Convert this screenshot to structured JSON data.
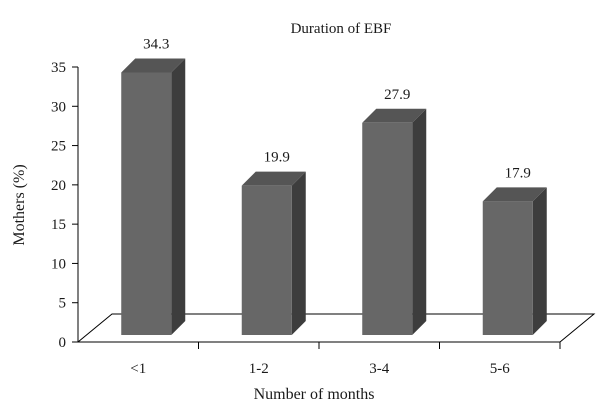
{
  "chart_data": {
    "type": "bar",
    "title": "Duration of EBF",
    "xlabel": "Number of months",
    "ylabel": "Mothers (%)",
    "categories": [
      "<1",
      "1-2",
      "3-4",
      "5-6"
    ],
    "values": [
      34.3,
      19.9,
      27.9,
      17.9
    ],
    "data_labels": [
      "34.3",
      "19.9",
      "27.9",
      "17.9"
    ],
    "ylim": [
      0,
      35
    ],
    "yticks": [
      0,
      5,
      10,
      15,
      20,
      25,
      30,
      35
    ],
    "ytick_labels": [
      "0",
      "5",
      "10",
      "15",
      "20",
      "25",
      "30",
      "35"
    ],
    "grid": false,
    "legend": "none",
    "style": "3d-bar",
    "colors": {
      "bar_front": "#676767",
      "bar_side": "#3d3d3d",
      "bar_top": "#555555",
      "axis": "#000000"
    }
  }
}
